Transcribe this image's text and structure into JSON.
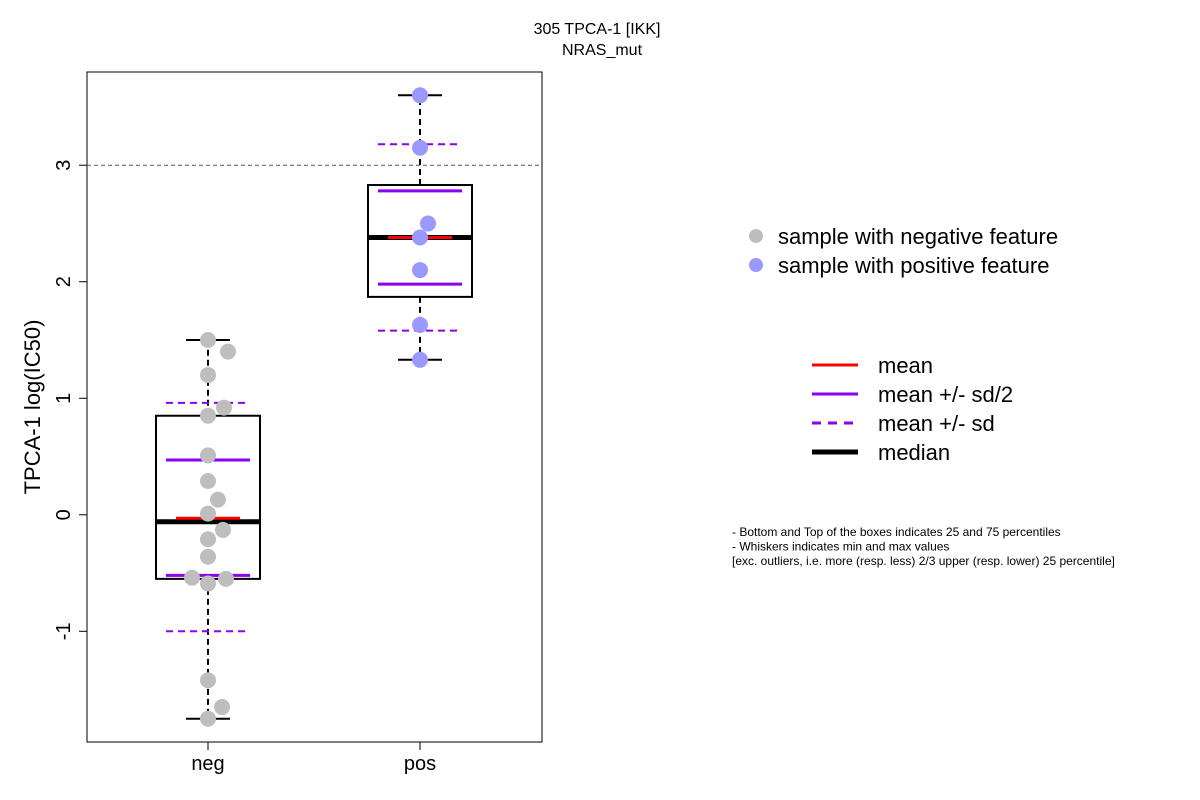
{
  "chart_data": {
    "type": "box",
    "title": "305 TPCA-1 [IKK]",
    "subtitle": "NRAS_mut",
    "ylabel": "TPCA-1 log(IC50)",
    "xlabel": "",
    "ylim": [
      -1.95,
      3.8
    ],
    "yticks": [
      -1,
      0,
      1,
      2,
      3
    ],
    "reference_line_y": 3,
    "categories": [
      "neg",
      "pos"
    ],
    "groups": [
      {
        "name": "neg",
        "point_color": "#bebebe",
        "points": [
          1.5,
          1.4,
          1.2,
          0.92,
          0.85,
          0.51,
          0.29,
          0.13,
          0.01,
          -0.13,
          -0.21,
          -0.36,
          -0.54,
          -0.55,
          -0.59,
          -1.42,
          -1.65,
          -1.75
        ],
        "whisker_min": -1.75,
        "q1": -0.55,
        "median": -0.06,
        "q3": 0.85,
        "whisker_max": 1.5,
        "mean": -0.03,
        "mean_minus_half_sd": -0.52,
        "mean_plus_half_sd": 0.47,
        "mean_minus_sd": -1.0,
        "mean_plus_sd": 0.96
      },
      {
        "name": "pos",
        "point_color": "#9999ff",
        "points": [
          3.6,
          3.15,
          2.5,
          2.38,
          2.1,
          1.63,
          1.33
        ],
        "whisker_min": 1.33,
        "q1": 1.87,
        "median": 2.38,
        "q3": 2.83,
        "whisker_max": 3.6,
        "mean": 2.38,
        "mean_minus_half_sd": 1.98,
        "mean_plus_half_sd": 2.78,
        "mean_minus_sd": 1.58,
        "mean_plus_sd": 3.18
      }
    ],
    "legend_points": [
      {
        "label": "sample with negative feature",
        "color": "#bebebe"
      },
      {
        "label": "sample with positive feature",
        "color": "#9999ff"
      }
    ],
    "legend_lines": [
      {
        "label": "mean",
        "color": "#ff0000",
        "style": "solid"
      },
      {
        "label": "mean +/- sd/2",
        "color": "#8b00ee",
        "style": "solid"
      },
      {
        "label": "mean +/- sd",
        "color": "#8b00ee",
        "style": "dashed"
      },
      {
        "label": "median",
        "color": "#000000",
        "style": "thick"
      }
    ],
    "notes": [
      "- Bottom and Top of the boxes indicates 25 and 75 percentiles",
      "- Whiskers indicates min and max values",
      "[exc. outliers, i.e. more (resp. less) 2/3 upper (resp. lower) 25 percentile]"
    ],
    "grid": false,
    "legend_position": "right"
  }
}
